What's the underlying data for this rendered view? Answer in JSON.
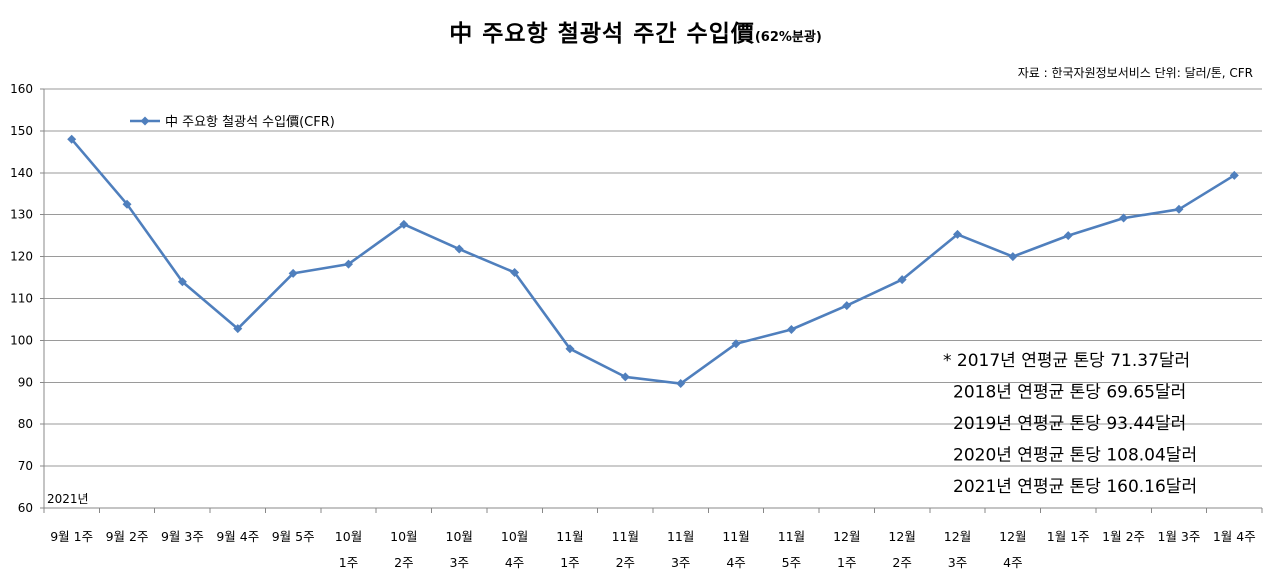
{
  "chart_data": {
    "type": "line",
    "title": "中 주요항 철광석 주간 수입價",
    "title_suffix": "(62%분광)",
    "source_note": "자료 : 한국자원정보서비스  단위: 달러/톤, CFR",
    "year_label": "2021년",
    "categories": [
      [
        "9월 1주"
      ],
      [
        "9월 2주"
      ],
      [
        "9월 3주"
      ],
      [
        "9월 4주"
      ],
      [
        "9월 5주"
      ],
      [
        "10월",
        "1주"
      ],
      [
        "10월",
        "2주"
      ],
      [
        "10월",
        "3주"
      ],
      [
        "10월",
        "4주"
      ],
      [
        "11월",
        "1주"
      ],
      [
        "11월",
        "2주"
      ],
      [
        "11월",
        "3주"
      ],
      [
        "11월",
        "4주"
      ],
      [
        "11월",
        "5주"
      ],
      [
        "12월",
        "1주"
      ],
      [
        "12월",
        "2주"
      ],
      [
        "12월",
        "3주"
      ],
      [
        "12월",
        "4주"
      ],
      [
        "1월 1주"
      ],
      [
        "1월 2주"
      ],
      [
        "1월 3주"
      ],
      [
        "1월 4주"
      ]
    ],
    "series": [
      {
        "name": "中 주요항 철광석 수입價(CFR)",
        "color": "#4f7fbd",
        "values": [
          148.0,
          132.5,
          114.0,
          102.8,
          116.0,
          118.2,
          127.7,
          121.8,
          116.2,
          98.0,
          91.3,
          89.7,
          99.2,
          102.6,
          108.3,
          114.5,
          125.3,
          120.0,
          125.0,
          129.2,
          131.3,
          139.4
        ]
      }
    ],
    "ylim": [
      60,
      160
    ],
    "yticks": [
      60,
      70,
      80,
      90,
      100,
      110,
      120,
      130,
      140,
      150,
      160
    ],
    "grid": true,
    "legend": "top-left",
    "annotations": [
      "* 2017년 연평균 톤당 71.37달러",
      "2018년 연평균 톤당 69.65달러",
      "2019년 연평균 톤당 93.44달러",
      "2020년 연평균 톤당 108.04달러",
      "2021년 연평균 톤당 160.16달러"
    ]
  }
}
